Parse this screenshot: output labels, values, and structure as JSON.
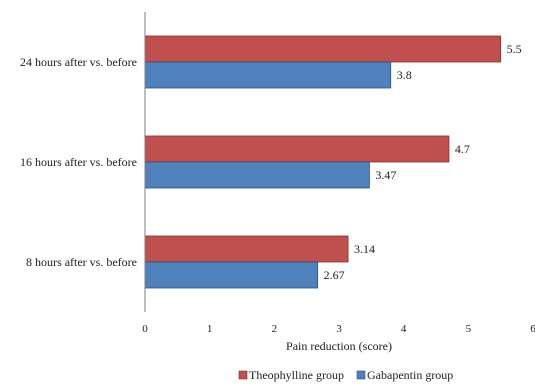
{
  "chart_data": {
    "type": "bar",
    "orientation": "horizontal",
    "categories": [
      "8 hours after vs. before",
      "16 hours after vs. before",
      "24 hours after vs. before"
    ],
    "series": [
      {
        "name": "Theophylline group",
        "color": "#c0504d",
        "values": [
          3.14,
          4.7,
          5.5
        ],
        "labels": [
          "3.14",
          "4.7",
          "5.5"
        ]
      },
      {
        "name": "Gabapentin group",
        "color": "#4f81bd",
        "values": [
          2.67,
          3.47,
          3.8
        ],
        "labels": [
          "2.67",
          "3.47",
          "3.8"
        ]
      }
    ],
    "xlabel": "Pain reduction (score)",
    "xlim": [
      0,
      6
    ],
    "xticks": [
      "0",
      "1",
      "2",
      "3",
      "4",
      "5",
      "6"
    ],
    "grid": false,
    "legend_position": "bottom"
  }
}
